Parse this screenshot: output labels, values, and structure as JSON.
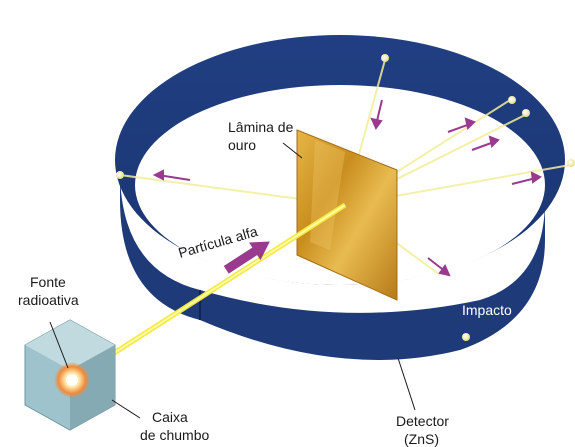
{
  "labels": {
    "foil_line1": "Lâmina de",
    "foil_line2": "ouro",
    "particle": "Partícula alfa",
    "source_line1": "Fonte",
    "source_line2": "radioativa",
    "box_line1": "Caixa",
    "box_line2": "de chumbo",
    "impact": "Impacto",
    "detector_line1": "Detector",
    "detector_line2": "(ZnS)"
  },
  "colors": {
    "detector_ring": "#1f3a78",
    "detector_shadow": "#142a5c",
    "gold_foil": "#d69a2a",
    "beam": "#f2ea3c",
    "arrow": "#9a3a8f",
    "lead_box": "#9fc3cc"
  }
}
